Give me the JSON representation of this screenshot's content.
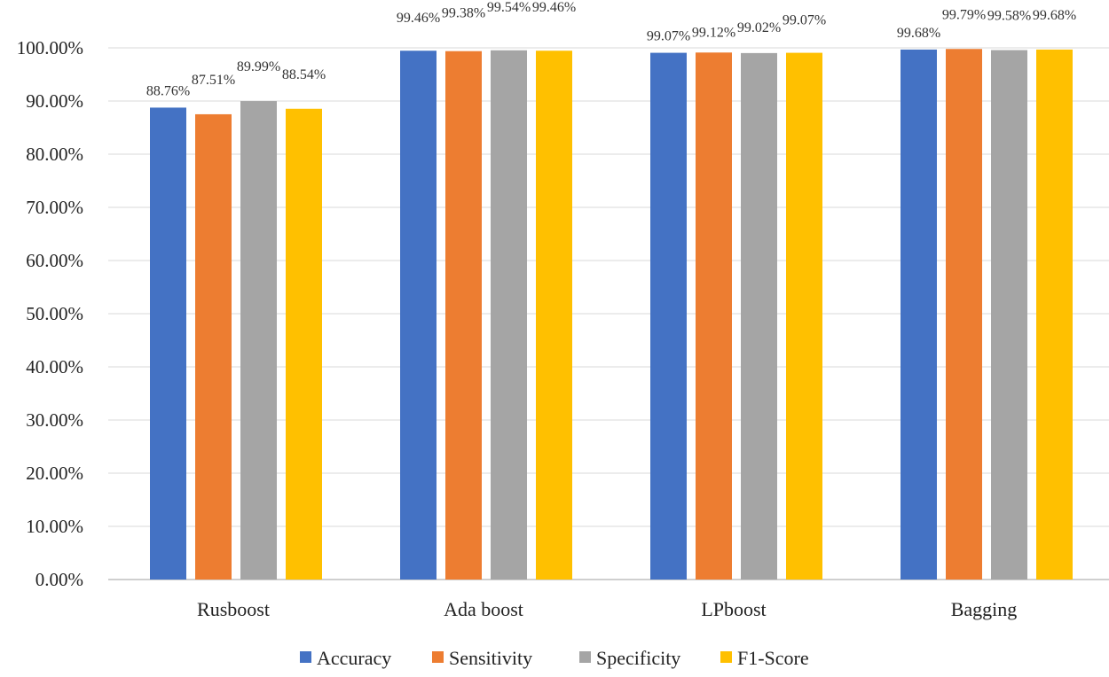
{
  "chart_data": {
    "type": "bar",
    "title": "",
    "xlabel": "",
    "ylabel": "",
    "categories": [
      "Rusboost",
      "Ada boost",
      "LPboost",
      "Bagging"
    ],
    "series": [
      {
        "name": "Accuracy",
        "color": "#4472C4",
        "values": [
          88.76,
          99.46,
          99.07,
          99.68
        ]
      },
      {
        "name": "Sensitivity",
        "color": "#ED7D31",
        "values": [
          87.51,
          99.38,
          99.12,
          99.79
        ]
      },
      {
        "name": "Specificity",
        "color": "#A5A5A5",
        "values": [
          89.99,
          99.54,
          99.02,
          99.58
        ]
      },
      {
        "name": "F1-Score",
        "color": "#FFC000",
        "values": [
          88.54,
          99.46,
          99.07,
          99.68
        ]
      }
    ],
    "ylim": [
      0,
      100
    ],
    "yticks": [
      0,
      10,
      20,
      30,
      40,
      50,
      60,
      70,
      80,
      90,
      100
    ],
    "ytick_labels": [
      "0.00%",
      "10.00%",
      "20.00%",
      "30.00%",
      "40.00%",
      "50.00%",
      "60.00%",
      "70.00%",
      "80.00%",
      "90.00%",
      "100.00%"
    ],
    "data_labels": [
      [
        "88.76%",
        "99.46%",
        "99.07%",
        "99.68%"
      ],
      [
        "87.51%",
        "99.38%",
        "99.12%",
        "99.79%"
      ],
      [
        "89.99%",
        "99.54%",
        "99.02%",
        "99.58%"
      ],
      [
        "88.54%",
        "99.46%",
        "99.07%",
        "99.68%"
      ]
    ],
    "grid": true,
    "legend_position": "bottom-center",
    "gridline_color": "#D9D9D9",
    "axis_color": "#BFBFBF"
  }
}
